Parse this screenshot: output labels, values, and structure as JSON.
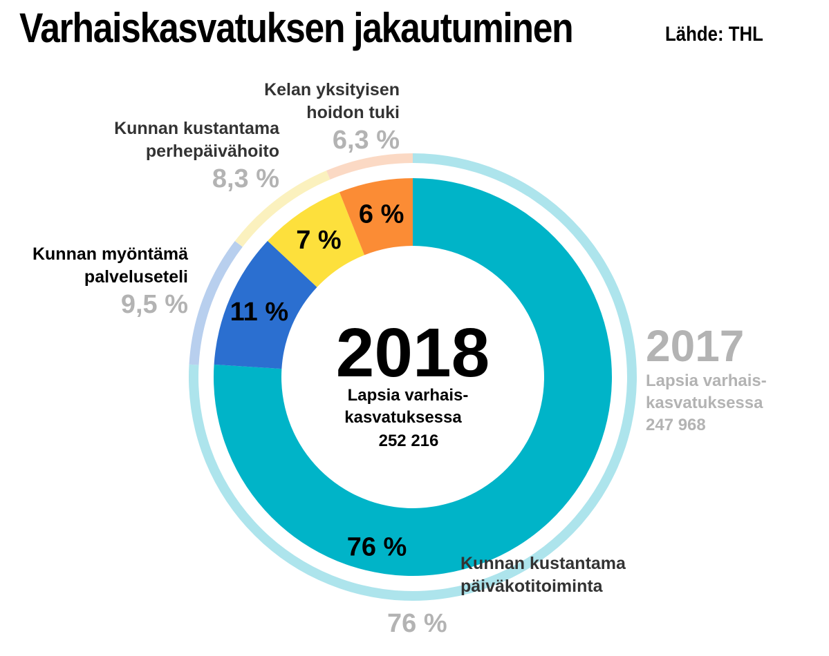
{
  "header": {
    "title": "Varhaiskasvatuksen jakautuminen",
    "source": "Lähde: THL"
  },
  "chart_data": {
    "type": "donut",
    "title": "Varhaiskasvatuksen jakautuminen",
    "source": "Lähde: THL",
    "categories": [
      "Kunnan kustantama päiväkotitoiminta",
      "Kunnan myöntämä palveluseteli",
      "Kunnan kustantama perhepäivähoito",
      "Kelan yksityisen hoidon tuki"
    ],
    "series": [
      {
        "name": "2018",
        "values": [
          76,
          11,
          7,
          6
        ],
        "value_labels": [
          "76 %",
          "11 %",
          "7 %",
          "6 %"
        ],
        "colors": [
          "#00b4c8",
          "#2b6fd0",
          "#fde03c",
          "#fb8c35"
        ],
        "total_label": "Lapsia varhais- kasvatuksessa",
        "total": "252 216"
      },
      {
        "name": "2017",
        "values": [
          75.9,
          9.5,
          8.3,
          6.3
        ],
        "value_labels": [
          "76 %",
          "9,5 %",
          "8,3 %",
          "6,3 %"
        ],
        "colors": [
          "#ade4ec",
          "#b8cfee",
          "#fbf1be",
          "#fbd9c4"
        ],
        "total_label": "Lapsia varhais- kasvatuksessa",
        "total": "247 968"
      }
    ],
    "center": {
      "year": "2018",
      "text_line1": "Lapsia varhais-",
      "text_line2": "kasvatuksessa",
      "total": "252 216"
    },
    "side": {
      "year": "2017",
      "text_line1": "Lapsia varhais-",
      "text_line2": "kasvatuksessa",
      "total": "247 968"
    },
    "outer_labels": {
      "kela": {
        "line1": "Kelan yksityisen",
        "line2": "hoidon tuki",
        "pct": "6,3 %"
      },
      "perhe": {
        "line1": "Kunnan kustantama",
        "line2": "perhepäivähoito",
        "pct": "8,3 %"
      },
      "seteli": {
        "line1": "Kunnan myöntämä",
        "line2": "palveluseteli",
        "pct": "9,5 %"
      },
      "paivakoti": {
        "line1": "Kunnan kustantama",
        "line2": "päiväkotitoiminta",
        "pct": "76 %"
      }
    }
  }
}
